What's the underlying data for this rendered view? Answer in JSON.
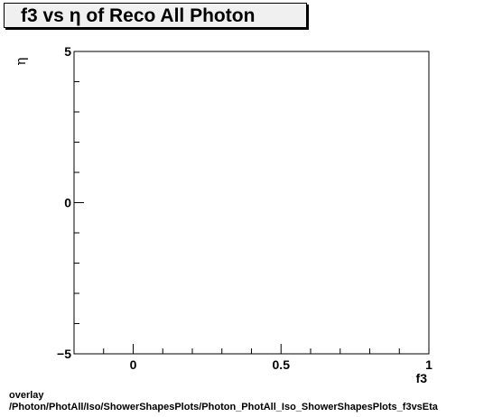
{
  "chart_data": {
    "type": "scatter",
    "title": "f3 vs  η of Reco All Photon",
    "xlabel": "f3",
    "ylabel": "η",
    "xlim": [
      -0.2,
      1.0
    ],
    "ylim": [
      -5,
      5
    ],
    "x_ticks": [
      "0",
      "0.5",
      "1"
    ],
    "x_tick_values": [
      0,
      0.5,
      1
    ],
    "y_ticks": [
      "−5",
      "0",
      "5"
    ],
    "y_tick_values": [
      -5,
      0,
      5
    ],
    "series": [],
    "grid": false
  },
  "footer": {
    "line1": "overlay",
    "line2": "/Photon/PhotAll/Iso/ShowerShapesPlots/Photon_PhotAll_Iso_ShowerShapesPlots_f3vsEta"
  }
}
